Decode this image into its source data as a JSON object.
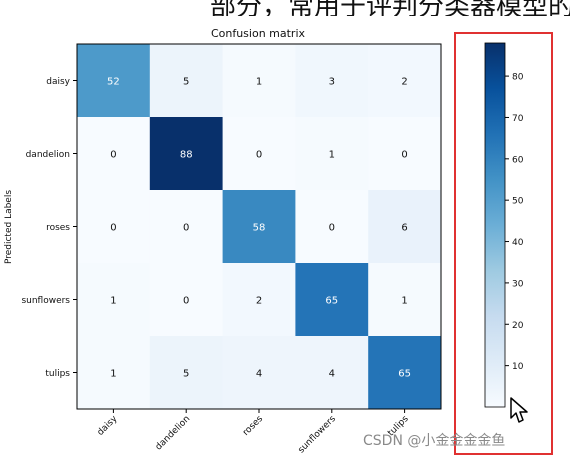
{
  "header": {
    "partial_text": "部分，常用于评判分类器模型的优劣"
  },
  "watermark": {
    "text": "CSDN @小金金金金鱼"
  },
  "colors": {
    "highlight_box": "#e03131"
  },
  "chart_data": {
    "type": "heatmap",
    "title": "Confusion matrix",
    "ylabel": "Predicted Labels",
    "xlabel": "",
    "x_categories": [
      "daisy",
      "dandelion",
      "roses",
      "sunflowers",
      "tulips"
    ],
    "y_categories": [
      "daisy",
      "dandelion",
      "roses",
      "sunflowers",
      "tulips"
    ],
    "matrix": [
      [
        52,
        5,
        1,
        3,
        2
      ],
      [
        0,
        88,
        0,
        1,
        0
      ],
      [
        0,
        0,
        58,
        0,
        6
      ],
      [
        1,
        0,
        2,
        65,
        1
      ],
      [
        1,
        5,
        4,
        4,
        65
      ]
    ],
    "colormap": "Blues",
    "value_range": [
      0,
      88
    ],
    "colorbar_ticks": [
      10,
      20,
      30,
      40,
      50,
      60,
      70,
      80
    ]
  }
}
